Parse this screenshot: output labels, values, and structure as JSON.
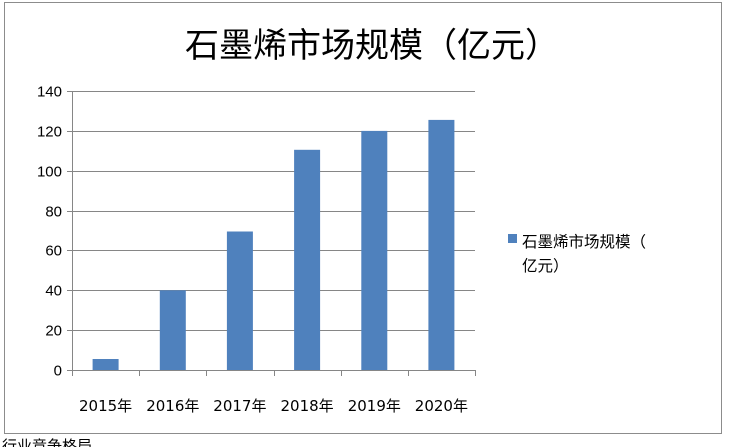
{
  "chart_data": {
    "type": "bar",
    "title": "石墨烯市场规模（亿元）",
    "categories": [
      "2015年",
      "2016年",
      "2017年",
      "2018年",
      "2019年",
      "2020年"
    ],
    "series": [
      {
        "name": "石墨烯市场规模（亿元）",
        "values": [
          5.5,
          40,
          69.5,
          110.5,
          120,
          125.5
        ],
        "color": "#4f81bd"
      }
    ],
    "ylim": [
      0,
      140
    ],
    "yticks": [
      0,
      20,
      40,
      60,
      80,
      100,
      120,
      140
    ],
    "grid": true,
    "legend": "right"
  },
  "footer": {
    "text": "行业竞争格局"
  }
}
